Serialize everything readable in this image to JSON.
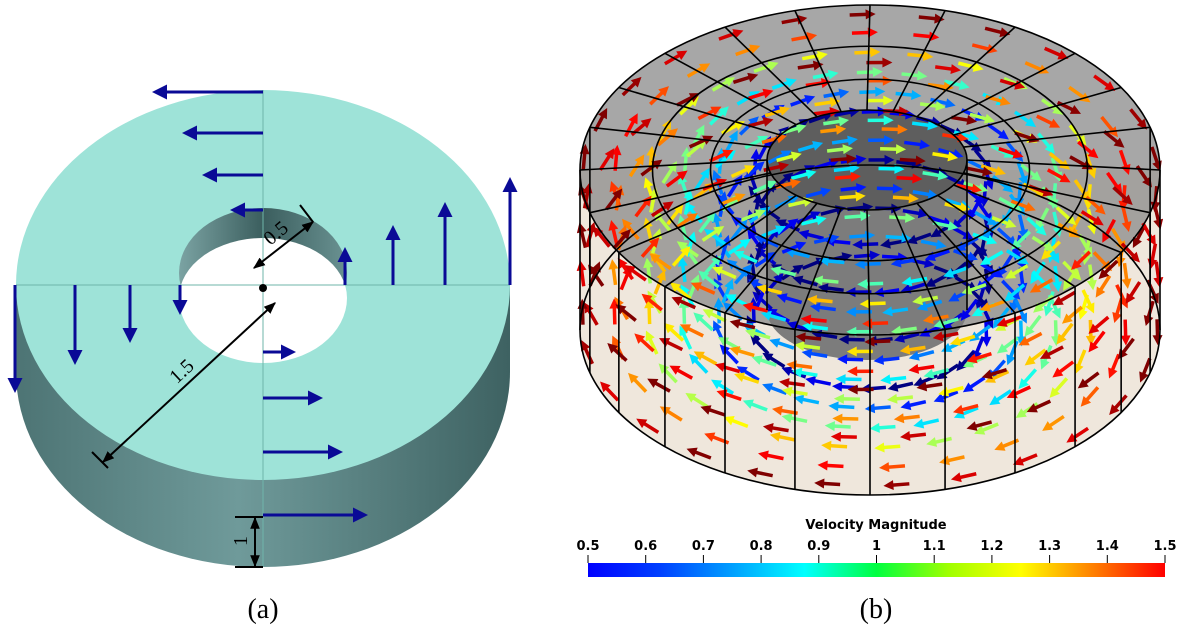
{
  "figure": {
    "panel_a": {
      "label": "(a)",
      "inner_radius": "0.5",
      "outer_radius": "1.5",
      "height": "1"
    },
    "panel_b": {
      "label": "(b)",
      "colorbar": {
        "title": "Velocity Magnitude",
        "range": [
          0.5,
          1.5
        ],
        "ticks": [
          0.5,
          0.6,
          0.7,
          0.8,
          0.9,
          1,
          1.1,
          1.2,
          1.3,
          1.4,
          1.5
        ]
      }
    }
  }
}
